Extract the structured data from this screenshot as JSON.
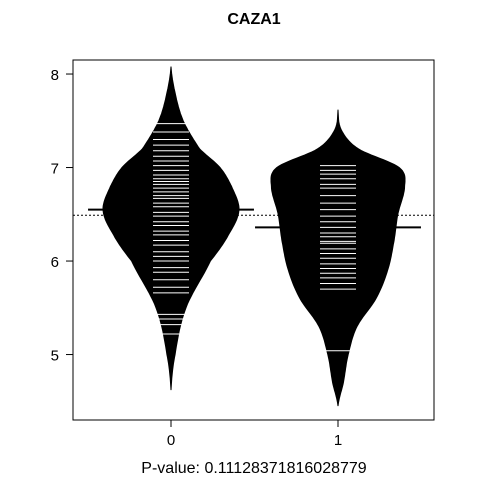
{
  "chart_data": {
    "type": "beanplot",
    "title": "CAZA1",
    "xlabel": "P-value: 0.11128371816028779",
    "ylabel": "",
    "categories": [
      "0",
      "1"
    ],
    "y_ticks": [
      "5",
      "6",
      "7",
      "8"
    ],
    "ylim": [
      4.3,
      8.15
    ],
    "overall_mean": 6.49,
    "group_means": [
      6.55,
      6.36
    ],
    "grid": false,
    "series": [
      {
        "name": "0",
        "density_y": [
          4.62,
          5.0,
          5.5,
          6.0,
          6.3,
          6.55,
          6.8,
          7.0,
          7.2,
          7.5,
          7.8,
          8.08
        ],
        "density_w": [
          0.0,
          0.06,
          0.22,
          0.58,
          0.86,
          1.0,
          0.89,
          0.72,
          0.42,
          0.18,
          0.06,
          0.0
        ],
        "points": [
          5.22,
          5.32,
          5.38,
          5.43,
          5.66,
          5.72,
          5.8,
          5.88,
          5.93,
          6.0,
          6.05,
          6.1,
          6.17,
          6.22,
          6.28,
          6.32,
          6.38,
          6.42,
          6.48,
          6.52,
          6.58,
          6.62,
          6.67,
          6.7,
          6.74,
          6.78,
          6.82,
          6.85,
          6.88,
          6.92,
          6.97,
          7.02,
          7.07,
          7.12,
          7.18,
          7.24,
          7.3,
          7.38,
          7.47
        ]
      },
      {
        "name": "1",
        "density_y": [
          4.45,
          4.7,
          5.0,
          5.3,
          5.6,
          5.9,
          6.2,
          6.5,
          6.8,
          7.0,
          7.2,
          7.4,
          7.62
        ],
        "density_w": [
          0.0,
          0.08,
          0.15,
          0.28,
          0.56,
          0.73,
          0.82,
          0.88,
          0.98,
          0.9,
          0.3,
          0.05,
          0.0
        ],
        "points": [
          5.04,
          5.7,
          5.76,
          5.82,
          5.87,
          5.92,
          5.97,
          6.03,
          6.08,
          6.13,
          6.19,
          6.21,
          6.26,
          6.3,
          6.36,
          6.42,
          6.48,
          6.55,
          6.62,
          6.7,
          6.78,
          6.82,
          6.88,
          6.93,
          6.97,
          7.02
        ]
      }
    ]
  }
}
